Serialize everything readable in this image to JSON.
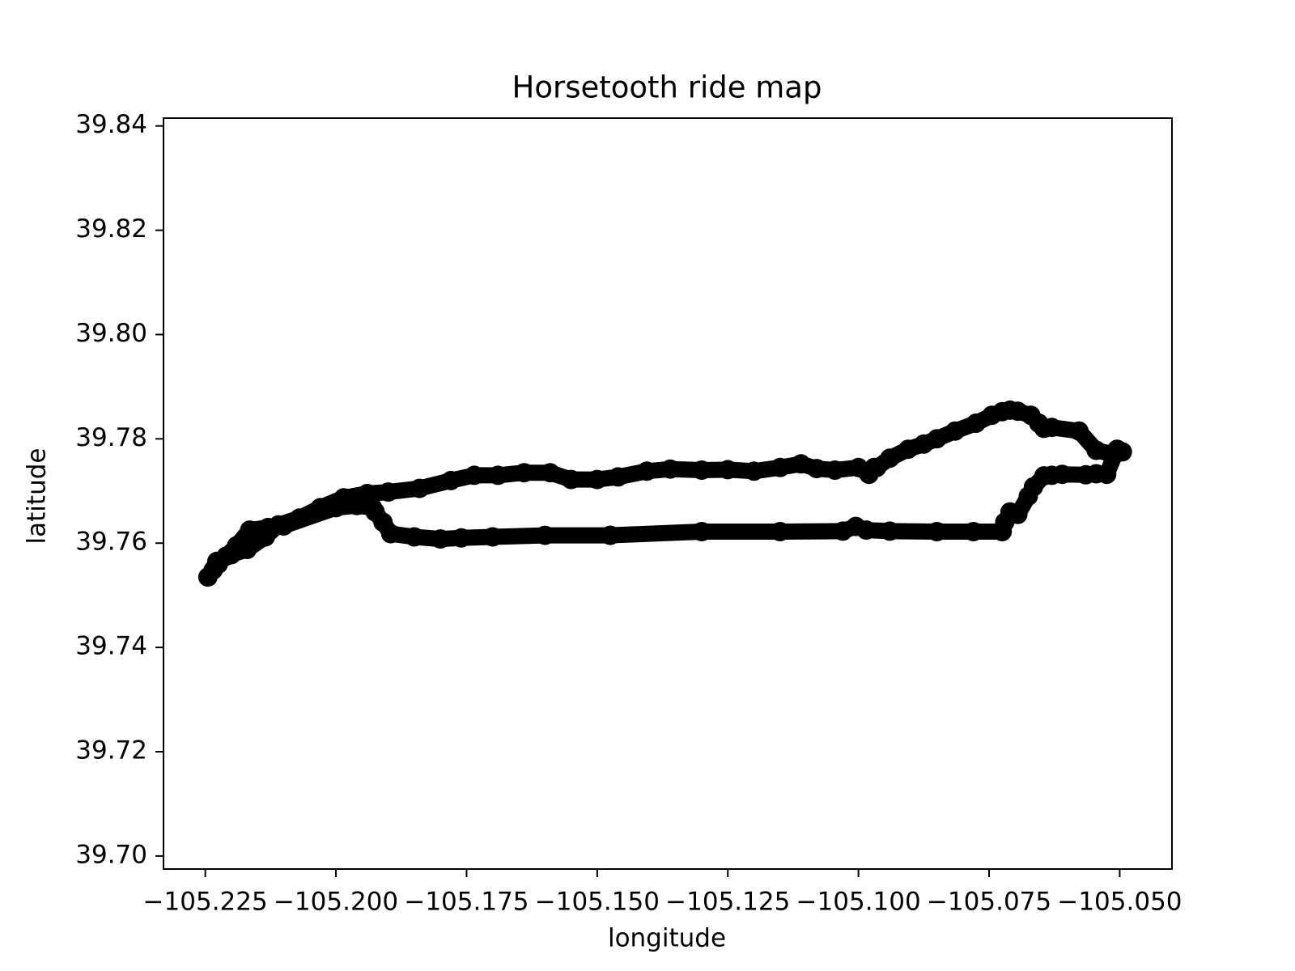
{
  "chart_data": {
    "type": "line",
    "title": "Horsetooth ride map",
    "xlabel": "longitude",
    "ylabel": "latitude",
    "xlim": [
      -105.233,
      -105.04
    ],
    "ylim": [
      39.6975,
      39.8415
    ],
    "xticks": [
      -105.225,
      -105.2,
      -105.175,
      -105.15,
      -105.125,
      -105.1,
      -105.075,
      -105.05
    ],
    "xtick_labels": [
      "−105.225",
      "−105.200",
      "−105.175",
      "−105.150",
      "−105.125",
      "−105.100",
      "−105.075",
      "−105.050"
    ],
    "yticks": [
      39.7,
      39.72,
      39.74,
      39.76,
      39.78,
      39.8,
      39.82,
      39.84
    ],
    "ytick_labels": [
      "39.70",
      "39.72",
      "39.74",
      "39.76",
      "39.78",
      "39.80",
      "39.82",
      "39.84"
    ],
    "grid": false,
    "colors": {
      "track": "#000000",
      "axes": "#000000",
      "background": "#ffffff"
    },
    "series": [
      {
        "x": [
          -105.1475,
          -105.16,
          -105.17,
          -105.176,
          -105.18,
          -105.185,
          -105.1895,
          -105.191,
          -105.1925,
          -105.193,
          -105.196,
          -105.2,
          -105.21,
          -105.213,
          -105.2165,
          -105.219,
          -105.221,
          -105.2225,
          -105.2235,
          -105.2245,
          -105.2228,
          -105.22,
          -105.217,
          -105.2135,
          -105.211,
          -105.207,
          -105.203,
          -105.1985,
          -105.194,
          -105.19,
          -105.184,
          -105.178,
          -105.1735,
          -105.169,
          -105.164,
          -105.159,
          -105.155,
          -105.15,
          -105.146,
          -105.1405,
          -105.136,
          -105.13,
          -105.125,
          -105.12,
          -105.115,
          -105.111,
          -105.108,
          -105.1045,
          -105.1,
          -105.098,
          -105.097,
          -105.0965,
          -105.094,
          -105.0905,
          -105.0875,
          -105.085,
          -105.0815,
          -105.0775,
          -105.0745,
          -105.0725,
          -105.071,
          -105.0695,
          -105.067,
          -105.0655,
          -105.0645,
          -105.063,
          -105.0578,
          -105.0545,
          -105.051,
          -105.0495,
          -105.0505,
          -105.0525,
          -105.0545,
          -105.0565,
          -105.061,
          -105.063,
          -105.0645,
          -105.0665,
          -105.0675,
          -105.0695,
          -105.071,
          -105.072,
          -105.0725,
          -105.078,
          -105.085,
          -105.094,
          -105.0985,
          -105.1005,
          -105.103,
          -105.115,
          -105.13,
          -105.1475
        ],
        "y": [
          39.7615,
          39.7615,
          39.7612,
          39.761,
          39.7608,
          39.7612,
          39.7618,
          39.764,
          39.766,
          39.7668,
          39.7672,
          39.7668,
          39.7633,
          39.763,
          39.7625,
          39.7595,
          39.7575,
          39.756,
          39.7548,
          39.7535,
          39.7565,
          39.7578,
          39.7588,
          39.7612,
          39.7635,
          39.7648,
          39.7668,
          39.7687,
          39.7695,
          39.7698,
          39.7705,
          39.772,
          39.773,
          39.773,
          39.7735,
          39.7735,
          39.7722,
          39.7722,
          39.7727,
          39.7738,
          39.7742,
          39.774,
          39.7741,
          39.7738,
          39.7745,
          39.7752,
          39.7743,
          39.774,
          39.7745,
          39.7732,
          39.7745,
          39.7745,
          39.7763,
          39.778,
          39.779,
          39.78,
          39.7815,
          39.783,
          39.7845,
          39.7852,
          39.7855,
          39.7853,
          39.7845,
          39.783,
          39.782,
          39.7822,
          39.7815,
          39.7778,
          39.777,
          39.7775,
          39.778,
          39.7732,
          39.7733,
          39.7731,
          39.7732,
          39.773,
          39.7729,
          39.7708,
          39.769,
          39.7655,
          39.766,
          39.764,
          39.7622,
          39.7622,
          39.7622,
          39.7623,
          39.7625,
          39.7632,
          39.7623,
          39.7622,
          39.7622,
          39.7615
        ]
      }
    ]
  }
}
